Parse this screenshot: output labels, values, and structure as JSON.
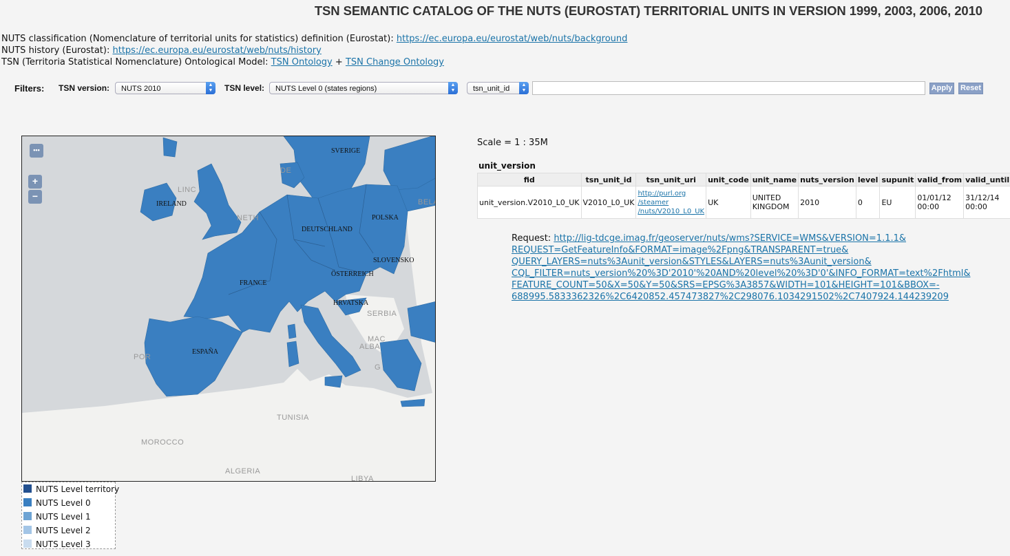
{
  "title": "TSN SEMANTIC CATALOG OF THE NUTS (EUROSTAT) TERRITORIAL UNITS IN VERSION 1999, 2003, 2006, 2010",
  "info": {
    "line1_label": "NUTS classification (Nomenclature of territorial units for statistics) definition (Eurostat):",
    "line1_link": "https://ec.europa.eu/eurostat/web/nuts/background",
    "line2_label": "NUTS history (Eurostat):",
    "line2_link": "https://ec.europa.eu/eurostat/web/nuts/history",
    "line3_label": "TSN (Territoria Statistical Nomenclature) Ontological Model:",
    "line3_link1": "TSN Ontology",
    "line3_plus": "+",
    "line3_link2": "TSN Change Ontology"
  },
  "filters": {
    "label": "Filters:",
    "version_label": "TSN version:",
    "version_value": "NUTS 2010",
    "level_label": "TSN level:",
    "level_value": "NUTS Level 0 (states regions)",
    "attr_value": "tsn_unit_id",
    "text_value": "",
    "apply": "Apply",
    "reset": "Reset"
  },
  "map": {
    "layer_switch": "•••",
    "zoom_in": "+",
    "zoom_out": "−",
    "country_labels": [
      "SVERIGE",
      "IRELAND",
      "DEUTSCHLAND",
      "POLSKA",
      "SLOVENSKO",
      "ÖSTERREICH",
      "FRANCE",
      "HRVATSKA",
      "ESPAÑA"
    ],
    "base_labels": [
      "TUNISIA",
      "MOROCCO",
      "ALGERIA",
      "SERBIA",
      "POR",
      "NETH",
      "BELA",
      "LINC",
      "LIBYA",
      "MAC",
      "ALBA",
      "DE",
      "G"
    ],
    "colors": {
      "sea": "#d5d8db",
      "land": "#f2f2f0",
      "nuts": "#3a7fc1"
    }
  },
  "legend": [
    {
      "label": "NUTS Level territory",
      "color": "#23508f"
    },
    {
      "label": "NUTS Level 0",
      "color": "#3a7fc1"
    },
    {
      "label": "NUTS Level 1",
      "color": "#6ea4d4"
    },
    {
      "label": "NUTS Level 2",
      "color": "#a3c5e6"
    },
    {
      "label": "NUTS Level 3",
      "color": "#c9dcef"
    }
  ],
  "scale": "Scale = 1 : 35M",
  "table": {
    "title": "unit_version",
    "headers": [
      "fid",
      "tsn_unit_id",
      "tsn_unit_uri",
      "unit_code",
      "unit_name",
      "nuts_version",
      "level",
      "supunit",
      "valid_from",
      "valid_until"
    ],
    "row": {
      "fid": "unit_version.V2010_L0_UK",
      "tsn_unit_id": "V2010_L0_UK",
      "uri1": "http://purl.org",
      "uri2": "/steamer",
      "uri3": "/nuts/V2010_L0_UK",
      "unit_code": "UK",
      "unit_name1": "UNITED",
      "unit_name2": "KINGDOM",
      "nuts_version": "2010",
      "level": "0",
      "supunit": "EU",
      "valid_from1": "01/01/12",
      "valid_from2": "00:00",
      "valid_until1": "31/12/14",
      "valid_until2": "00:00"
    }
  },
  "request": {
    "label": "Request:",
    "lines": [
      "http://lig-tdcge.imag.fr/geoserver/nuts/wms?SERVICE=WMS&VERSION=1.1.1&",
      "REQUEST=GetFeatureInfo&FORMAT=image%2Fpng&TRANSPARENT=true&",
      "QUERY_LAYERS=nuts%3Aunit_version&STYLES&LAYERS=nuts%3Aunit_version&",
      "CQL_FILTER=nuts_version%20%3D'2010'%20AND%20level%20%3D'0'&INFO_FORMAT=text%2Fhtml&",
      "FEATURE_COUNT=50&X=50&Y=50&SRS=EPSG%3A3857&WIDTH=101&HEIGHT=101&BBOX=-",
      "688995.5833362326%2C6420852.457473827%2C298076.1034291502%2C7407924.144239209"
    ]
  }
}
